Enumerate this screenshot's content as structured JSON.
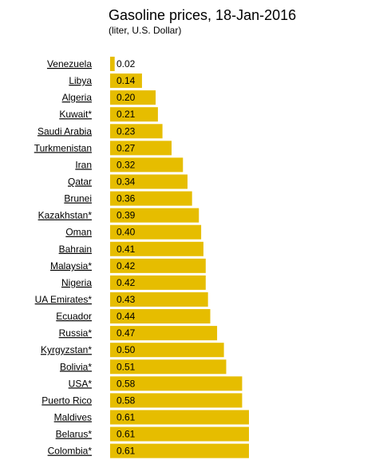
{
  "chart_data": {
    "type": "bar",
    "orientation": "horizontal",
    "title": "Gasoline prices, 18-Jan-2016",
    "subtitle": "(liter, U.S. Dollar)",
    "categories": [
      "Venezuela",
      "Libya",
      "Algeria",
      "Kuwait*",
      "Saudi Arabia",
      "Turkmenistan",
      "Iran",
      "Qatar",
      "Brunei",
      "Kazakhstan*",
      "Oman",
      "Bahrain",
      "Malaysia*",
      "Nigeria",
      "UA Emirates*",
      "Ecuador",
      "Russia*",
      "Kyrgyzstan*",
      "Bolivia*",
      "USA*",
      "Puerto Rico",
      "Maldives",
      "Belarus*",
      "Colombia*"
    ],
    "values": [
      0.02,
      0.14,
      0.2,
      0.21,
      0.23,
      0.27,
      0.32,
      0.34,
      0.36,
      0.39,
      0.4,
      0.41,
      0.42,
      0.42,
      0.43,
      0.44,
      0.47,
      0.5,
      0.51,
      0.58,
      0.58,
      0.61,
      0.61,
      0.61
    ],
    "value_labels": [
      "0.02",
      "0.14",
      "0.20",
      "0.21",
      "0.23",
      "0.27",
      "0.32",
      "0.34",
      "0.36",
      "0.39",
      "0.40",
      "0.41",
      "0.42",
      "0.42",
      "0.43",
      "0.44",
      "0.47",
      "0.50",
      "0.51",
      "0.58",
      "0.58",
      "0.61",
      "0.61",
      "0.61"
    ],
    "xlim": [
      0,
      0.61
    ],
    "grid": false,
    "bar_color": "#e6bd00",
    "label_color": "#000000"
  }
}
